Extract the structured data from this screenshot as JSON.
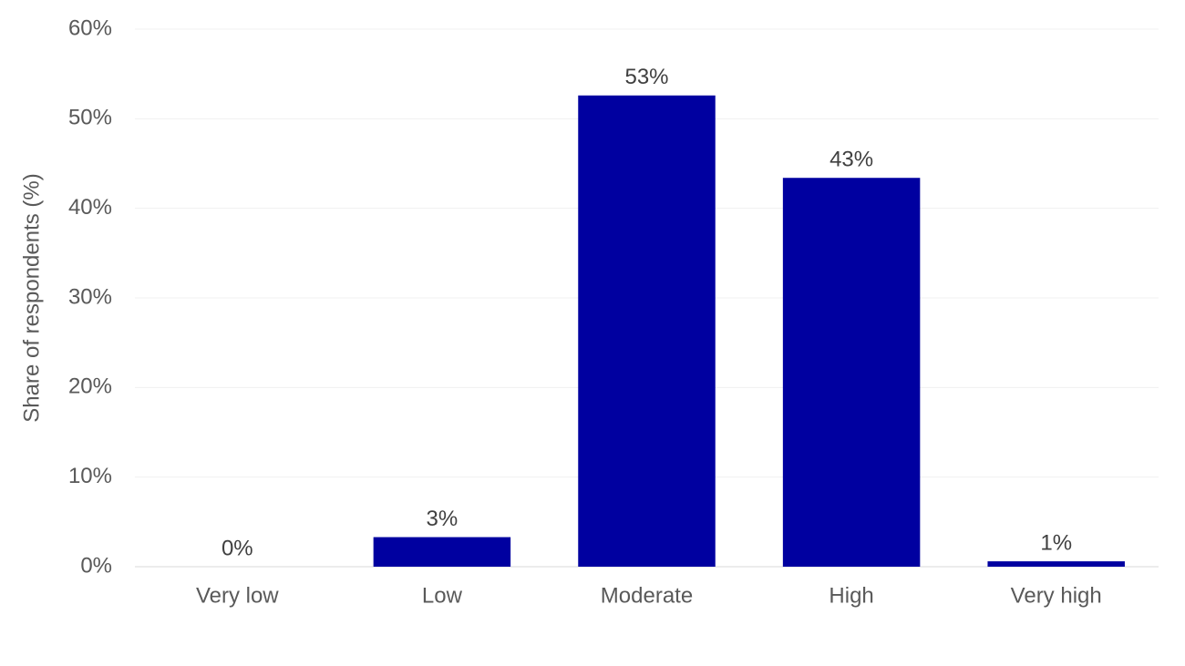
{
  "chart_data": {
    "type": "bar",
    "y_label": "Share of respondents (%)",
    "categories": [
      "Very low",
      "Low",
      "Moderate",
      "High",
      "Very high"
    ],
    "values": [
      0,
      3.3,
      52.6,
      43.4,
      0.6
    ],
    "value_labels": [
      "0%",
      "3%",
      "53%",
      "43%",
      "1%"
    ],
    "color": "#0000a0",
    "ylim": [
      0,
      60
    ],
    "yticks": [
      {
        "value": 0,
        "label": "0%"
      },
      {
        "value": 10,
        "label": "10%"
      },
      {
        "value": 20,
        "label": "20%"
      },
      {
        "value": 30,
        "label": "30%"
      },
      {
        "value": 40,
        "label": "40%"
      },
      {
        "value": 50,
        "label": "50%"
      },
      {
        "value": 60,
        "label": "60%"
      }
    ],
    "grid": true
  }
}
